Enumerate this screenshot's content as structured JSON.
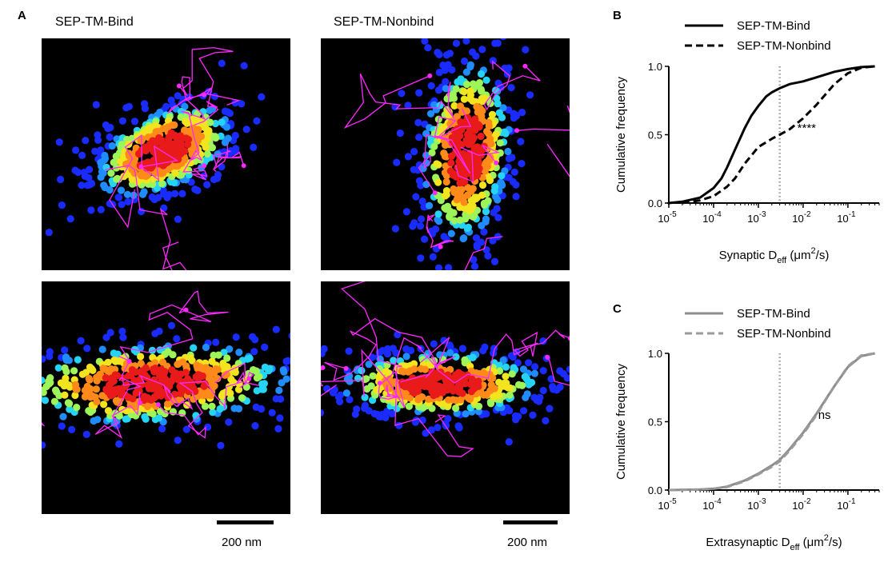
{
  "panels": {
    "a": {
      "letter": "A",
      "col1_title": "SEP-TM-Bind",
      "col2_title": "SEP-TM-Nonbind",
      "scale_bar_label": "200 nm",
      "colors": {
        "background": "#000000",
        "trajectory": "#ff29ff",
        "density": [
          "#1a2bff",
          "#1f8cff",
          "#25d3f5",
          "#9ef55a",
          "#f2e51f",
          "#ff8a1a",
          "#e81a1a",
          "#a8001f"
        ]
      }
    },
    "b": {
      "letter": "B"
    },
    "c": {
      "letter": "C"
    }
  },
  "chart_data": [
    {
      "type": "line",
      "panel": "B",
      "xlabel": {
        "main": "Synaptic D",
        "sub": "eff",
        "unit_pre": " (μm",
        "sup": "2",
        "unit_post": "/s)"
      },
      "ylabel": "Cumulative frequency",
      "x_scale": "log",
      "xlim": [
        1e-05,
        0.5
      ],
      "ylim": [
        0,
        1.0
      ],
      "x_ticks": [
        {
          "base": "10",
          "exp": "-5"
        },
        {
          "base": "10",
          "exp": "-4"
        },
        {
          "base": "10",
          "exp": "-3"
        },
        {
          "base": "10",
          "exp": "-2"
        },
        {
          "base": "10",
          "exp": "-1"
        }
      ],
      "x_tick_values": [
        1e-05,
        0.0001,
        0.001,
        0.01,
        0.1
      ],
      "y_ticks": [
        "0.0",
        "0.5",
        "1.0"
      ],
      "y_tick_values": [
        0,
        0.5,
        1.0
      ],
      "reference_line_x": 0.003,
      "annotation": {
        "text": "****",
        "x": 0.012,
        "y": 0.52
      },
      "legend_position": "top",
      "series": [
        {
          "name": "SEP-TM-Bind",
          "color": "#000000",
          "style": "solid",
          "x": [
            1e-05,
            2e-05,
            5e-05,
            0.0001,
            0.00015,
            0.0002,
            0.0003,
            0.0005,
            0.0007,
            0.001,
            0.0015,
            0.002,
            0.003,
            0.005,
            0.01,
            0.02,
            0.05,
            0.1,
            0.2,
            0.4
          ],
          "y": [
            0.0,
            0.01,
            0.04,
            0.11,
            0.18,
            0.26,
            0.39,
            0.55,
            0.64,
            0.71,
            0.78,
            0.81,
            0.84,
            0.87,
            0.89,
            0.92,
            0.96,
            0.98,
            0.995,
            1.0
          ]
        },
        {
          "name": "SEP-TM-Nonbind",
          "color": "#000000",
          "style": "dashed",
          "x": [
            2e-05,
            5e-05,
            0.0001,
            0.0002,
            0.0003,
            0.0005,
            0.001,
            0.002,
            0.003,
            0.005,
            0.01,
            0.02,
            0.05,
            0.1,
            0.2,
            0.4
          ],
          "y": [
            0.0,
            0.02,
            0.05,
            0.12,
            0.18,
            0.29,
            0.41,
            0.47,
            0.5,
            0.54,
            0.62,
            0.72,
            0.87,
            0.95,
            0.99,
            1.0
          ]
        }
      ]
    },
    {
      "type": "line",
      "panel": "C",
      "xlabel": {
        "main": "Extrasynaptic D",
        "sub": "eff",
        "unit_pre": " (μm",
        "sup": "2",
        "unit_post": "/s)"
      },
      "ylabel": "Cumulative frequency",
      "x_scale": "log",
      "xlim": [
        1e-05,
        0.5
      ],
      "ylim": [
        0,
        1.0
      ],
      "x_ticks": [
        {
          "base": "10",
          "exp": "-5"
        },
        {
          "base": "10",
          "exp": "-4"
        },
        {
          "base": "10",
          "exp": "-3"
        },
        {
          "base": "10",
          "exp": "-2"
        },
        {
          "base": "10",
          "exp": "-1"
        }
      ],
      "x_tick_values": [
        1e-05,
        0.0001,
        0.001,
        0.01,
        0.1
      ],
      "y_ticks": [
        "0.0",
        "0.5",
        "1.0"
      ],
      "y_tick_values": [
        0,
        0.5,
        1.0
      ],
      "reference_line_x": 0.003,
      "annotation": {
        "text": "ns",
        "x": 0.03,
        "y": 0.52
      },
      "legend_position": "top",
      "series": [
        {
          "name": "SEP-TM-Bind",
          "color": "#8c8c8c",
          "style": "solid",
          "x": [
            1e-05,
            5e-05,
            0.0001,
            0.0002,
            0.0005,
            0.001,
            0.002,
            0.003,
            0.005,
            0.01,
            0.02,
            0.03,
            0.05,
            0.1,
            0.2,
            0.4
          ],
          "y": [
            0.0,
            0.004,
            0.01,
            0.025,
            0.07,
            0.12,
            0.18,
            0.22,
            0.3,
            0.42,
            0.56,
            0.65,
            0.76,
            0.9,
            0.98,
            1.0
          ]
        },
        {
          "name": "SEP-TM-Nonbind",
          "color": "#9a9a9a",
          "style": "dashed",
          "x": [
            1e-05,
            5e-05,
            0.0001,
            0.0002,
            0.0005,
            0.001,
            0.002,
            0.003,
            0.005,
            0.01,
            0.02,
            0.03,
            0.05,
            0.1,
            0.2,
            0.4
          ],
          "y": [
            0.0,
            0.004,
            0.01,
            0.022,
            0.065,
            0.115,
            0.17,
            0.21,
            0.29,
            0.41,
            0.55,
            0.645,
            0.76,
            0.905,
            0.985,
            1.0
          ]
        }
      ]
    }
  ]
}
